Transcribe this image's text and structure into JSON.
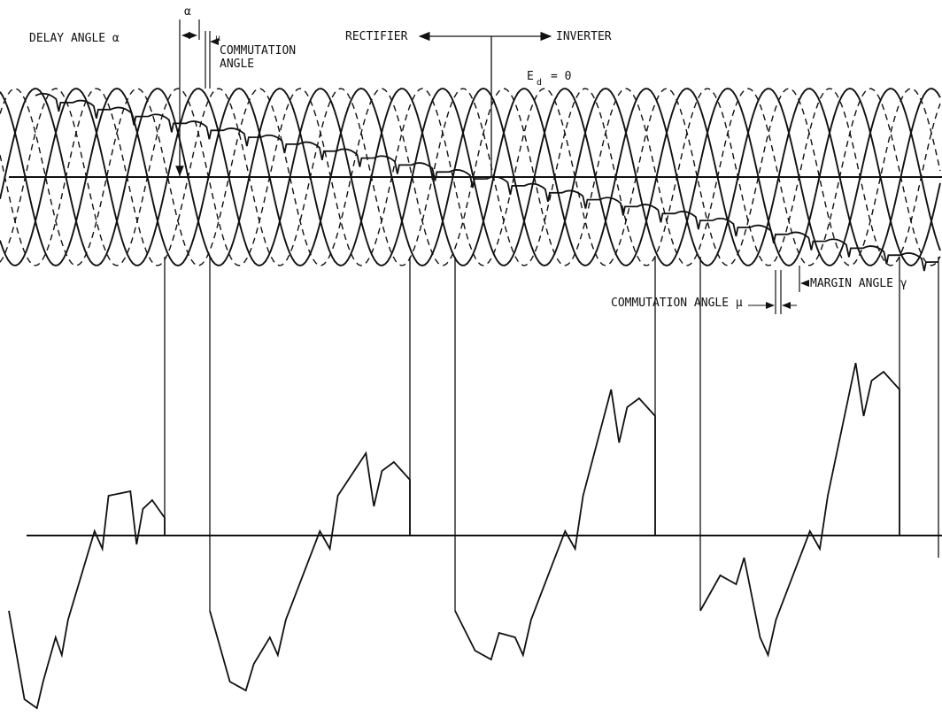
{
  "labels": {
    "delay_angle": "DELAY ANGLE α",
    "alpha": "α",
    "mu": "μ",
    "commutation_angle_top_1": "COMMUTATION",
    "commutation_angle_top_2": "ANGLE",
    "rectifier": "RECTIFIER",
    "inverter": "INVERTER",
    "ed_main": "E",
    "ed_sub": "d",
    "ed_eq": "= 0",
    "commutation_angle_mu": "COMMUTATION ANGLE μ",
    "margin_angle": "MARGIN ANGLE γ",
    "gamma_small": "γ"
  },
  "colors": {
    "ink": "#111111",
    "background": "#ffffff"
  }
}
